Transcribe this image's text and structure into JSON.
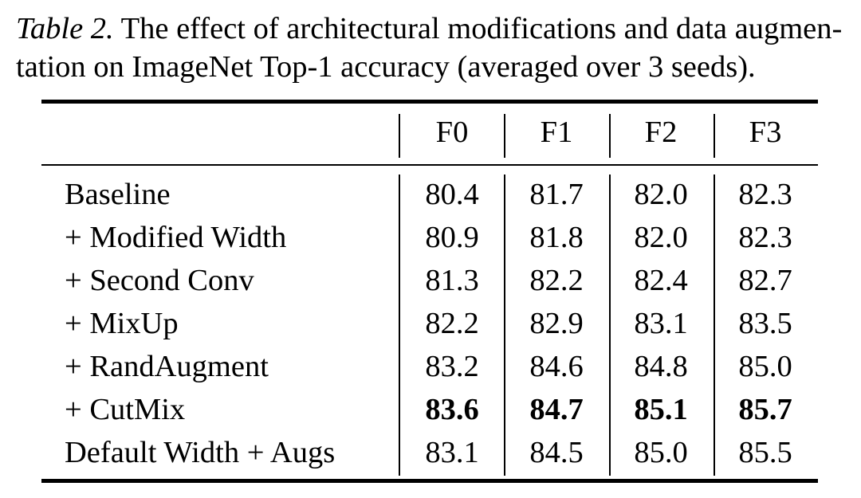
{
  "caption": {
    "label": "Table 2.",
    "line1": " The effect of architectural modifications and data augmen-",
    "line2": "tation on ImageNet Top-1 accuracy (averaged over 3 seeds)."
  },
  "table": {
    "columns": [
      "F0",
      "F1",
      "F2",
      "F3"
    ],
    "rows": [
      {
        "label": "Baseline",
        "values": [
          "80.4",
          "81.7",
          "82.0",
          "82.3"
        ],
        "bold": false
      },
      {
        "label": "+ Modified Width",
        "values": [
          "80.9",
          "81.8",
          "82.0",
          "82.3"
        ],
        "bold": false
      },
      {
        "label": "+ Second Conv",
        "values": [
          "81.3",
          "82.2",
          "82.4",
          "82.7"
        ],
        "bold": false
      },
      {
        "label": "+ MixUp",
        "values": [
          "82.2",
          "82.9",
          "83.1",
          "83.5"
        ],
        "bold": false
      },
      {
        "label": "+ RandAugment",
        "values": [
          "83.2",
          "84.6",
          "84.8",
          "85.0"
        ],
        "bold": false
      },
      {
        "label": "+ CutMix",
        "values": [
          "83.6",
          "84.7",
          "85.1",
          "85.7"
        ],
        "bold": true
      },
      {
        "label": "Default Width + Augs",
        "values": [
          "83.1",
          "84.5",
          "85.0",
          "85.5"
        ],
        "bold": false
      }
    ]
  }
}
